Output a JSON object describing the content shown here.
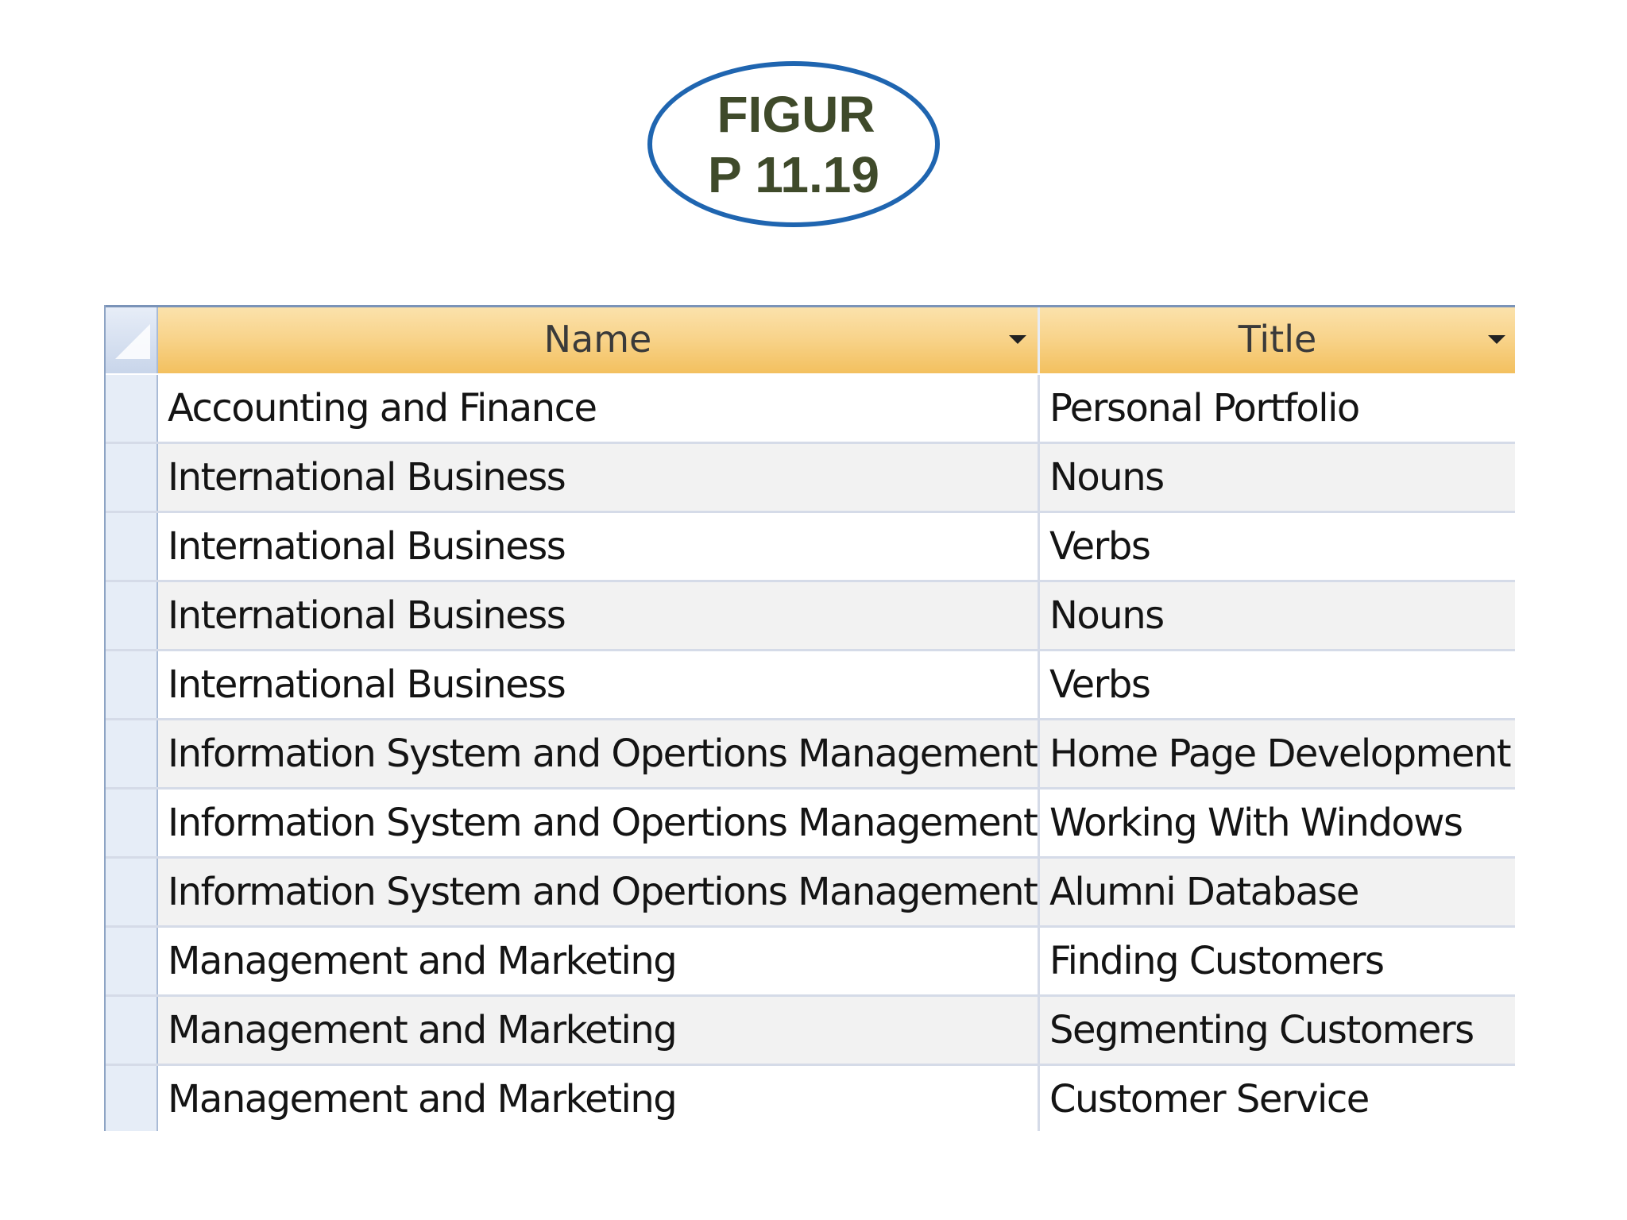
{
  "figure_label": {
    "line1": "FIGUR",
    "line2": "P 11.19"
  },
  "table": {
    "columns": [
      "Name",
      "Title"
    ],
    "rows": [
      [
        "Accounting and Finance",
        "Personal Portfolio"
      ],
      [
        "International Business",
        "Nouns"
      ],
      [
        "International Business",
        "Verbs"
      ],
      [
        "International Business",
        "Nouns"
      ],
      [
        "International Business",
        "Verbs"
      ],
      [
        "Information System and Opertions Management",
        "Home Page Development"
      ],
      [
        "Information System and Opertions Management",
        "Working With Windows"
      ],
      [
        "Information System and Opertions Management",
        "Alumni Database"
      ],
      [
        "Management and Marketing",
        "Finding Customers"
      ],
      [
        "Management and Marketing",
        "Segmenting Customers"
      ],
      [
        "Management and Marketing",
        "Customer Service"
      ]
    ]
  },
  "colors": {
    "badge_border": "#1f65b0",
    "badge_text": "#3f4a2a",
    "header_fill": "#f8d38a",
    "selector_fill": "#e6edf7",
    "grid_line": "#d5dbe8"
  }
}
